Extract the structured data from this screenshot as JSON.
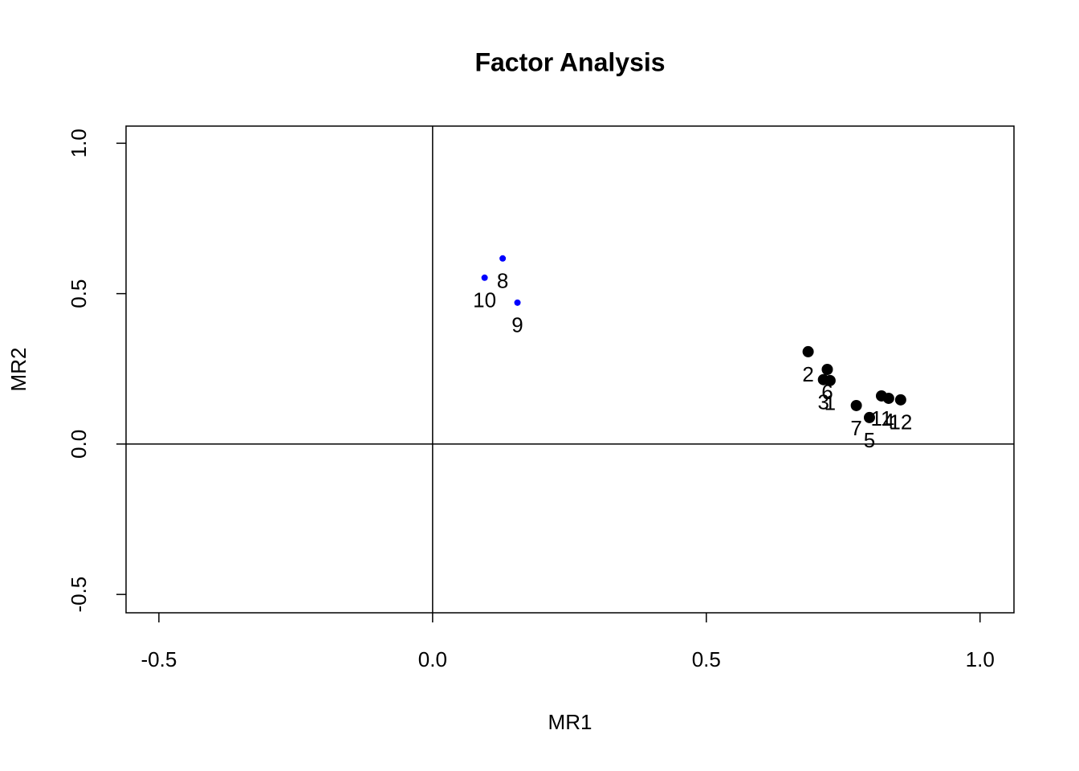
{
  "chart_data": {
    "type": "scatter",
    "title": "Factor Analysis",
    "x_label": "MR1",
    "y_label": "MR2",
    "xlim": [
      -0.56,
      1.062
    ],
    "ylim": [
      -0.561,
      1.057
    ],
    "xticks": [
      -0.5,
      {
        "value": 0,
        "label": "0.0"
      },
      0.5,
      {
        "value": 1,
        "label": "1.0"
      }
    ],
    "yticks": [
      -0.5,
      {
        "value": 0,
        "label": "0.0"
      },
      0.5,
      {
        "value": 1,
        "label": "1.0"
      }
    ],
    "hlines": [
      0
    ],
    "vlines": [
      0
    ],
    "series": [
      {
        "color": "#000000",
        "labels": [
          "1",
          "2",
          "3",
          "4",
          "5",
          "6",
          "7",
          "11",
          "12"
        ],
        "x": [
          0.726,
          0.686,
          0.714,
          0.833,
          0.798,
          0.721,
          0.774,
          0.82,
          0.855
        ],
        "values": [
          0.211,
          0.307,
          0.214,
          0.152,
          0.088,
          0.248,
          0.128,
          0.16,
          0.147
        ]
      },
      {
        "color": "#0000ff",
        "labels": [
          "8",
          "9",
          "10"
        ],
        "x": [
          0.128,
          0.155,
          0.095
        ],
        "values": [
          0.617,
          0.47,
          0.553
        ]
      }
    ]
  }
}
